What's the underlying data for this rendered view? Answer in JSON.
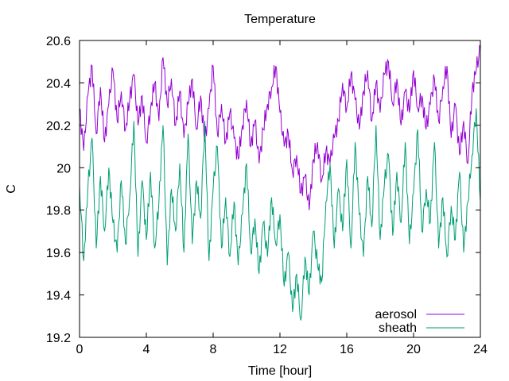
{
  "chart_data": {
    "type": "line",
    "title": "Temperature",
    "xlabel": "Time [hour]",
    "ylabel": "C",
    "xlim": [
      0,
      24
    ],
    "ylim": [
      19.2,
      20.6
    ],
    "x_ticks": [
      0,
      4,
      8,
      12,
      16,
      20,
      24
    ],
    "y_ticks": [
      19.2,
      19.4,
      19.6,
      19.8,
      20,
      20.2,
      20.4,
      20.6
    ],
    "grid": false,
    "legend_position": "bottom-right",
    "series": [
      {
        "name": "aerosol",
        "color": "#9400d3",
        "x": [
          0,
          0.25,
          0.5,
          0.75,
          1,
          1.25,
          1.5,
          1.75,
          2,
          2.25,
          2.5,
          2.75,
          3,
          3.25,
          3.5,
          3.75,
          4,
          4.25,
          4.5,
          4.75,
          5,
          5.25,
          5.5,
          5.75,
          6,
          6.25,
          6.5,
          6.75,
          7,
          7.25,
          7.5,
          7.75,
          8,
          8.25,
          8.5,
          8.75,
          9,
          9.25,
          9.5,
          9.75,
          10,
          10.25,
          10.5,
          10.75,
          11,
          11.25,
          11.5,
          11.75,
          12,
          12.25,
          12.5,
          12.75,
          13,
          13.25,
          13.5,
          13.75,
          14,
          14.25,
          14.5,
          14.75,
          15,
          15.25,
          15.5,
          15.75,
          16,
          16.25,
          16.5,
          16.75,
          17,
          17.25,
          17.5,
          17.75,
          18,
          18.25,
          18.5,
          18.75,
          19,
          19.25,
          19.5,
          19.75,
          20,
          20.25,
          20.5,
          20.75,
          21,
          21.25,
          21.5,
          21.75,
          22,
          22.25,
          22.5,
          22.75,
          23,
          23.25,
          23.5,
          23.75,
          24
        ],
        "values": [
          20.28,
          20.08,
          20.34,
          20.48,
          20.16,
          20.38,
          20.12,
          20.3,
          20.46,
          20.22,
          20.36,
          20.18,
          20.32,
          20.44,
          20.2,
          20.34,
          20.12,
          20.28,
          20.4,
          20.22,
          20.52,
          20.3,
          20.42,
          20.2,
          20.36,
          20.14,
          20.3,
          20.42,
          20.18,
          20.34,
          20.12,
          20.28,
          20.48,
          20.16,
          20.3,
          20.12,
          20.26,
          20.14,
          20.04,
          20.2,
          20.32,
          20.1,
          20.22,
          20.02,
          20.18,
          20.3,
          20.38,
          20.48,
          20.26,
          20.1,
          20.16,
          19.98,
          20.06,
          19.88,
          19.96,
          19.8,
          20.04,
          20.12,
          19.94,
          20.08,
          20.02,
          20.14,
          20.22,
          20.4,
          20.28,
          20.44,
          20.32,
          20.18,
          20.36,
          20.46,
          20.22,
          20.4,
          20.26,
          20.44,
          20.5,
          20.3,
          20.42,
          20.2,
          20.36,
          20.26,
          20.46,
          20.28,
          20.34,
          20.18,
          20.3,
          20.42,
          20.22,
          20.38,
          20.48,
          20.14,
          20.3,
          20.06,
          20.22,
          20.02,
          20.36,
          20.46,
          20.56
        ]
      },
      {
        "name": "sheath",
        "color": "#009e73",
        "x": [
          0,
          0.25,
          0.5,
          0.75,
          1,
          1.25,
          1.5,
          1.75,
          2,
          2.25,
          2.5,
          2.75,
          3,
          3.25,
          3.5,
          3.75,
          4,
          4.25,
          4.5,
          4.75,
          5,
          5.25,
          5.5,
          5.75,
          6,
          6.25,
          6.5,
          6.75,
          7,
          7.25,
          7.5,
          7.75,
          8,
          8.25,
          8.5,
          8.75,
          9,
          9.25,
          9.5,
          9.75,
          10,
          10.25,
          10.5,
          10.75,
          11,
          11.25,
          11.5,
          11.75,
          12,
          12.25,
          12.5,
          12.75,
          13,
          13.25,
          13.5,
          13.75,
          14,
          14.25,
          14.5,
          14.75,
          15,
          15.25,
          15.5,
          15.75,
          16,
          16.25,
          16.5,
          16.75,
          17,
          17.25,
          17.5,
          17.75,
          18,
          18.25,
          18.5,
          18.75,
          19,
          19.25,
          19.5,
          19.75,
          20,
          20.25,
          20.5,
          20.75,
          21,
          21.25,
          21.5,
          21.75,
          22,
          22.25,
          22.5,
          22.75,
          23,
          23.25,
          23.5,
          23.75,
          24
        ],
        "values": [
          19.92,
          19.56,
          19.9,
          20.14,
          19.62,
          19.96,
          19.7,
          20.0,
          19.74,
          19.6,
          19.94,
          19.64,
          19.86,
          20.22,
          19.58,
          19.94,
          19.66,
          19.98,
          19.62,
          19.84,
          20.2,
          19.54,
          19.9,
          19.7,
          20.02,
          19.6,
          20.16,
          19.64,
          19.94,
          19.76,
          20.22,
          19.56,
          19.9,
          20.1,
          19.62,
          19.86,
          19.58,
          19.84,
          19.54,
          19.78,
          20.02,
          19.6,
          19.76,
          19.5,
          19.74,
          19.58,
          19.86,
          19.64,
          19.78,
          19.44,
          19.6,
          19.32,
          19.5,
          19.28,
          19.58,
          19.4,
          19.7,
          19.54,
          19.46,
          19.84,
          20.02,
          19.62,
          19.9,
          19.7,
          20.04,
          19.62,
          20.12,
          19.78,
          19.58,
          19.96,
          19.72,
          20.2,
          19.66,
          19.92,
          20.06,
          19.68,
          19.98,
          19.74,
          20.12,
          19.64,
          19.88,
          20.18,
          19.7,
          19.9,
          19.74,
          20.12,
          19.62,
          19.86,
          19.58,
          19.82,
          19.66,
          19.98,
          19.6,
          19.84,
          20.06,
          20.28,
          19.84
        ]
      }
    ]
  }
}
